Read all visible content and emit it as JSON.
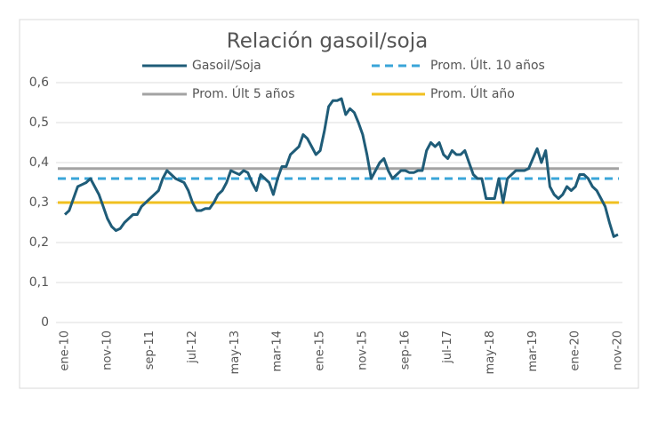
{
  "chart_data": {
    "type": "line",
    "title": "Relación gasoil/soja",
    "categories": [
      "ene-10",
      null,
      null,
      null,
      null,
      null,
      null,
      null,
      null,
      null,
      "nov-10",
      null,
      null,
      null,
      null,
      null,
      null,
      null,
      null,
      null,
      "sep-11",
      null,
      null,
      null,
      null,
      null,
      null,
      null,
      null,
      null,
      "jul-12",
      null,
      null,
      null,
      null,
      null,
      null,
      null,
      null,
      null,
      "may-13",
      null,
      null,
      null,
      null,
      null,
      null,
      null,
      null,
      null,
      "mar-14",
      null,
      null,
      null,
      null,
      null,
      null,
      null,
      null,
      null,
      "ene-15",
      null,
      null,
      null,
      null,
      null,
      null,
      null,
      null,
      null,
      "nov-15",
      null,
      null,
      null,
      null,
      null,
      null,
      null,
      null,
      null,
      "sep-16",
      null,
      null,
      null,
      null,
      null,
      null,
      null,
      null,
      null,
      "jul-17",
      null,
      null,
      null,
      null,
      null,
      null,
      null,
      null,
      null,
      "may-18",
      null,
      null,
      null,
      null,
      null,
      null,
      null,
      null,
      null,
      "mar-19",
      null,
      null,
      null,
      null,
      null,
      null,
      null,
      null,
      null,
      "ene-20",
      null,
      null,
      null,
      null,
      null,
      null,
      null,
      null,
      null,
      "nov-20"
    ],
    "series": [
      {
        "name": "Gasoil/Soja",
        "color": "#1f5c78",
        "values": [
          0.27,
          0.28,
          0.31,
          0.34,
          0.345,
          0.35,
          0.36,
          0.34,
          0.32,
          0.29,
          0.26,
          0.24,
          0.23,
          0.235,
          0.25,
          0.26,
          0.27,
          0.27,
          0.29,
          0.3,
          0.31,
          0.32,
          0.33,
          0.36,
          0.38,
          0.37,
          0.36,
          0.355,
          0.35,
          0.33,
          0.3,
          0.28,
          0.28,
          0.285,
          0.285,
          0.3,
          0.32,
          0.33,
          0.35,
          0.38,
          0.375,
          0.37,
          0.38,
          0.375,
          0.35,
          0.33,
          0.37,
          0.36,
          0.35,
          0.32,
          0.36,
          0.39,
          0.39,
          0.42,
          0.43,
          0.44,
          0.47,
          0.46,
          0.44,
          0.42,
          0.43,
          0.48,
          0.54,
          0.555,
          0.555,
          0.56,
          0.52,
          0.535,
          0.525,
          0.5,
          0.47,
          0.42,
          0.36,
          0.38,
          0.4,
          0.41,
          0.38,
          0.36,
          0.37,
          0.38,
          0.38,
          0.375,
          0.375,
          0.38,
          0.38,
          0.43,
          0.45,
          0.44,
          0.45,
          0.42,
          0.41,
          0.43,
          0.42,
          0.42,
          0.43,
          0.4,
          0.37,
          0.36,
          0.36,
          0.31,
          0.31,
          0.31,
          0.36,
          0.3,
          0.36,
          0.37,
          0.38,
          0.38,
          0.38,
          0.385,
          0.41,
          0.435,
          0.4,
          0.43,
          0.34,
          0.32,
          0.31,
          0.32,
          0.34,
          0.33,
          0.34,
          0.37,
          0.37,
          0.36,
          0.34,
          0.33,
          0.31,
          0.29,
          0.25,
          0.215,
          0.22
        ]
      }
    ],
    "reference_lines": [
      {
        "name": "Prom. Últ. 10 años",
        "color": "#3aa5d8",
        "value": 0.36,
        "dashed": true
      },
      {
        "name": "Prom. Últ 5 años",
        "color": "#a3a3a3",
        "value": 0.385,
        "dashed": false
      },
      {
        "name": "Prom. Últ año",
        "color": "#f0c020",
        "value": 0.3,
        "dashed": false
      }
    ],
    "ylim": [
      0,
      0.6
    ],
    "yticks": [
      0,
      {
        "value": 0.1,
        "label": "0,1"
      },
      {
        "value": 0.2,
        "label": "0,2"
      },
      {
        "value": 0.3,
        "label": "0,3"
      },
      {
        "value": 0.4,
        "label": "0,4"
      },
      {
        "value": 0.5,
        "label": "0,5"
      },
      {
        "value": 0.6,
        "label": "0,6"
      }
    ],
    "grid": true
  }
}
